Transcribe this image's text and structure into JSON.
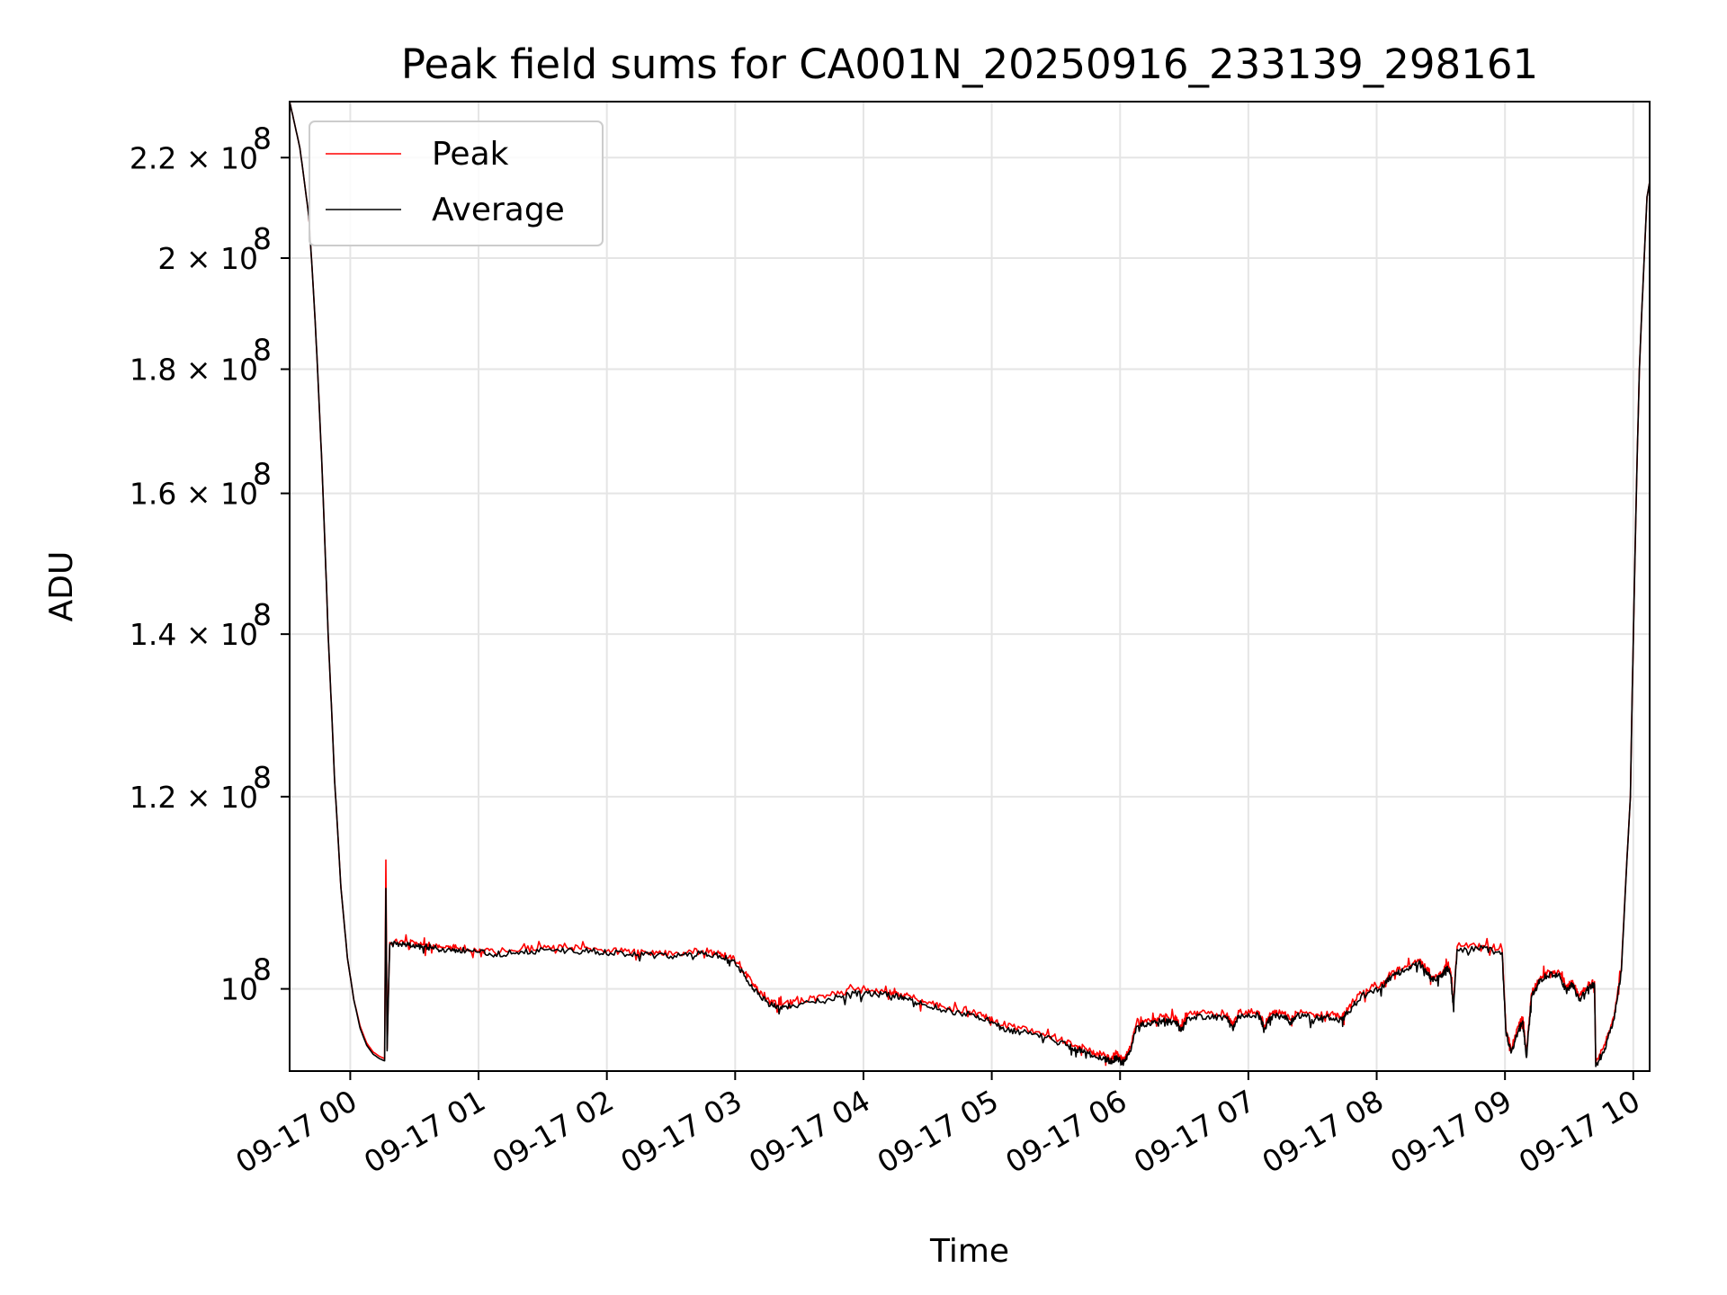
{
  "chart_data": {
    "type": "line",
    "title": "Peak field sums for CA001N_20250916_233139_298161",
    "xlabel": "Time",
    "ylabel": "ADU",
    "x_unit": "hours after 09-16 23:31:39",
    "xlim_hours": [
      0,
      10.6
    ],
    "ylim": [
      92500000,
      232000000
    ],
    "yscale": "log",
    "grid": true,
    "legend_position": "upper-left",
    "x_ticks": [
      {
        "label": "09-17 00",
        "hour": 0.4725
      },
      {
        "label": "09-17 01",
        "hour": 1.4725
      },
      {
        "label": "09-17 02",
        "hour": 2.4725
      },
      {
        "label": "09-17 03",
        "hour": 3.4725
      },
      {
        "label": "09-17 04",
        "hour": 4.4725
      },
      {
        "label": "09-17 05",
        "hour": 5.4725
      },
      {
        "label": "09-17 06",
        "hour": 6.4725
      },
      {
        "label": "09-17 07",
        "hour": 7.4725
      },
      {
        "label": "09-17 08",
        "hour": 8.4725
      },
      {
        "label": "09-17 09",
        "hour": 9.4725
      },
      {
        "label": "09-17 10",
        "hour": 10.4725
      }
    ],
    "y_ticks": [
      {
        "mantissa": "10",
        "exp": "8",
        "value": 100000000
      },
      {
        "mantissa": "1.2 × 10",
        "exp": "8",
        "value": 120000000
      },
      {
        "mantissa": "1.4 × 10",
        "exp": "8",
        "value": 140000000
      },
      {
        "mantissa": "1.6 × 10",
        "exp": "8",
        "value": 160000000
      },
      {
        "mantissa": "1.8 × 10",
        "exp": "8",
        "value": 180000000
      },
      {
        "mantissa": "2 × 10",
        "exp": "8",
        "value": 200000000
      },
      {
        "mantissa": "2.2 × 10",
        "exp": "8",
        "value": 220000000
      }
    ],
    "series": [
      {
        "name": "Peak",
        "color": "#ff0000",
        "points": [
          [
            0.0,
            232000000
          ],
          [
            0.08,
            222000000
          ],
          [
            0.15,
            208000000
          ],
          [
            0.2,
            188000000
          ],
          [
            0.25,
            165000000
          ],
          [
            0.3,
            140000000
          ],
          [
            0.35,
            122000000
          ],
          [
            0.4,
            110000000
          ],
          [
            0.45,
            103000000
          ],
          [
            0.5,
            99000000
          ],
          [
            0.55,
            96500000
          ],
          [
            0.6,
            95000000
          ],
          [
            0.65,
            94200000
          ],
          [
            0.7,
            93800000
          ],
          [
            0.74,
            93600000
          ],
          [
            0.75,
            113000000
          ],
          [
            0.76,
            94500000
          ],
          [
            0.78,
            104500000
          ],
          [
            0.9,
            104700000
          ],
          [
            1.0,
            104300000
          ],
          [
            1.1,
            104200000
          ],
          [
            1.2,
            104000000
          ],
          [
            1.3,
            104000000
          ],
          [
            1.45,
            103800000
          ],
          [
            1.6,
            103500000
          ],
          [
            1.8,
            103800000
          ],
          [
            2.0,
            104000000
          ],
          [
            2.2,
            104000000
          ],
          [
            2.4,
            103800000
          ],
          [
            2.6,
            103600000
          ],
          [
            2.8,
            103500000
          ],
          [
            3.0,
            103400000
          ],
          [
            3.2,
            103600000
          ],
          [
            3.35,
            103400000
          ],
          [
            3.45,
            103000000
          ],
          [
            3.55,
            101500000
          ],
          [
            3.65,
            99800000
          ],
          [
            3.75,
            98800000
          ],
          [
            3.85,
            98600000
          ],
          [
            4.0,
            98900000
          ],
          [
            4.2,
            99400000
          ],
          [
            4.4,
            99900000
          ],
          [
            4.55,
            99800000
          ],
          [
            4.7,
            99700000
          ],
          [
            4.8,
            99400000
          ],
          [
            4.95,
            98800000
          ],
          [
            5.1,
            98300000
          ],
          [
            5.3,
            97900000
          ],
          [
            5.45,
            97300000
          ],
          [
            5.55,
            96600000
          ],
          [
            5.7,
            96300000
          ],
          [
            5.9,
            95800000
          ],
          [
            6.05,
            95100000
          ],
          [
            6.15,
            94700000
          ],
          [
            6.25,
            94200000
          ],
          [
            6.35,
            93900000
          ],
          [
            6.4,
            93600000
          ],
          [
            6.45,
            94000000
          ],
          [
            6.5,
            93500000
          ],
          [
            6.55,
            94500000
          ],
          [
            6.6,
            96800000
          ],
          [
            6.7,
            97100000
          ],
          [
            6.8,
            97400000
          ],
          [
            6.9,
            97300000
          ],
          [
            6.95,
            96400000
          ],
          [
            7.0,
            97600000
          ],
          [
            7.15,
            97700000
          ],
          [
            7.3,
            97600000
          ],
          [
            7.35,
            96600000
          ],
          [
            7.4,
            97800000
          ],
          [
            7.55,
            97900000
          ],
          [
            7.6,
            96600000
          ],
          [
            7.65,
            97700000
          ],
          [
            7.75,
            97800000
          ],
          [
            7.8,
            97100000
          ],
          [
            7.85,
            97800000
          ],
          [
            8.0,
            97600000
          ],
          [
            8.1,
            97600000
          ],
          [
            8.2,
            97400000
          ],
          [
            8.25,
            98100000
          ],
          [
            8.35,
            99600000
          ],
          [
            8.5,
            100300000
          ],
          [
            8.6,
            101700000
          ],
          [
            8.7,
            102100000
          ],
          [
            8.8,
            102800000
          ],
          [
            8.85,
            102100000
          ],
          [
            8.9,
            101200000
          ],
          [
            8.98,
            101400000
          ],
          [
            9.02,
            102400000
          ],
          [
            9.05,
            101600000
          ],
          [
            9.07,
            98600000
          ],
          [
            9.1,
            104100000
          ],
          [
            9.3,
            104200000
          ],
          [
            9.45,
            103800000
          ],
          [
            9.48,
            96300000
          ],
          [
            9.52,
            94400000
          ],
          [
            9.58,
            96600000
          ],
          [
            9.61,
            97300000
          ],
          [
            9.64,
            94000000
          ],
          [
            9.68,
            99600000
          ],
          [
            9.75,
            101200000
          ],
          [
            9.82,
            101700000
          ],
          [
            9.9,
            101500000
          ],
          [
            9.95,
            100100000
          ],
          [
            10.0,
            100800000
          ],
          [
            10.05,
            99200000
          ],
          [
            10.12,
            100400000
          ],
          [
            10.17,
            100700000
          ],
          [
            10.18,
            93200000
          ],
          [
            10.25,
            94800000
          ],
          [
            10.32,
            97400000
          ],
          [
            10.38,
            102000000
          ],
          [
            10.45,
            120000000
          ],
          [
            10.52,
            180000000
          ],
          [
            10.58,
            212000000
          ],
          [
            10.6,
            215000000
          ]
        ]
      },
      {
        "name": "Average",
        "color": "#000000",
        "points": [
          [
            0.0,
            232000000
          ],
          [
            0.08,
            222000000
          ],
          [
            0.15,
            208000000
          ],
          [
            0.2,
            188000000
          ],
          [
            0.25,
            165000000
          ],
          [
            0.3,
            140000000
          ],
          [
            0.35,
            122000000
          ],
          [
            0.4,
            110000000
          ],
          [
            0.45,
            103000000
          ],
          [
            0.5,
            99000000
          ],
          [
            0.55,
            96300000
          ],
          [
            0.6,
            94800000
          ],
          [
            0.65,
            94000000
          ],
          [
            0.7,
            93600000
          ],
          [
            0.74,
            93400000
          ],
          [
            0.75,
            110000000
          ],
          [
            0.76,
            94300000
          ],
          [
            0.78,
            104300000
          ],
          [
            0.9,
            104400000
          ],
          [
            1.0,
            104100000
          ],
          [
            1.1,
            104000000
          ],
          [
            1.2,
            103800000
          ],
          [
            1.3,
            103800000
          ],
          [
            1.45,
            103600000
          ],
          [
            1.6,
            103300000
          ],
          [
            1.8,
            103600000
          ],
          [
            2.0,
            103800000
          ],
          [
            2.2,
            103800000
          ],
          [
            2.4,
            103600000
          ],
          [
            2.6,
            103400000
          ],
          [
            2.8,
            103300000
          ],
          [
            3.0,
            103200000
          ],
          [
            3.2,
            103400000
          ],
          [
            3.35,
            103200000
          ],
          [
            3.45,
            102800000
          ],
          [
            3.55,
            101200000
          ],
          [
            3.65,
            99500000
          ],
          [
            3.75,
            98500000
          ],
          [
            3.85,
            98300000
          ],
          [
            4.0,
            98600000
          ],
          [
            4.2,
            99100000
          ],
          [
            4.4,
            99600000
          ],
          [
            4.55,
            99500000
          ],
          [
            4.7,
            99400000
          ],
          [
            4.8,
            99100000
          ],
          [
            4.95,
            98500000
          ],
          [
            5.1,
            98000000
          ],
          [
            5.3,
            97600000
          ],
          [
            5.45,
            97000000
          ],
          [
            5.55,
            96300000
          ],
          [
            5.7,
            96000000
          ],
          [
            5.9,
            95500000
          ],
          [
            6.05,
            94800000
          ],
          [
            6.15,
            94400000
          ],
          [
            6.25,
            93900000
          ],
          [
            6.35,
            93600000
          ],
          [
            6.4,
            93300000
          ],
          [
            6.45,
            93700000
          ],
          [
            6.5,
            93200000
          ],
          [
            6.55,
            94200000
          ],
          [
            6.6,
            96500000
          ],
          [
            6.7,
            96800000
          ],
          [
            6.8,
            97100000
          ],
          [
            6.9,
            97000000
          ],
          [
            6.95,
            96100000
          ],
          [
            7.0,
            97300000
          ],
          [
            7.15,
            97400000
          ],
          [
            7.3,
            97300000
          ],
          [
            7.35,
            96300000
          ],
          [
            7.4,
            97500000
          ],
          [
            7.55,
            97600000
          ],
          [
            7.6,
            96300000
          ],
          [
            7.65,
            97400000
          ],
          [
            7.75,
            97500000
          ],
          [
            7.8,
            96800000
          ],
          [
            7.85,
            97500000
          ],
          [
            8.0,
            97300000
          ],
          [
            8.1,
            97300000
          ],
          [
            8.2,
            97100000
          ],
          [
            8.25,
            97800000
          ],
          [
            8.35,
            99300000
          ],
          [
            8.5,
            100000000
          ],
          [
            8.6,
            101400000
          ],
          [
            8.7,
            101800000
          ],
          [
            8.8,
            102500000
          ],
          [
            8.85,
            101800000
          ],
          [
            8.9,
            100900000
          ],
          [
            8.98,
            101100000
          ],
          [
            9.02,
            102100000
          ],
          [
            9.05,
            101300000
          ],
          [
            9.07,
            98300000
          ],
          [
            9.1,
            103800000
          ],
          [
            9.3,
            103900000
          ],
          [
            9.45,
            103500000
          ],
          [
            9.48,
            96000000
          ],
          [
            9.52,
            94100000
          ],
          [
            9.58,
            96300000
          ],
          [
            9.61,
            97000000
          ],
          [
            9.64,
            93700000
          ],
          [
            9.68,
            99300000
          ],
          [
            9.75,
            100900000
          ],
          [
            9.82,
            101400000
          ],
          [
            9.9,
            101200000
          ],
          [
            9.95,
            99800000
          ],
          [
            10.0,
            100500000
          ],
          [
            10.05,
            98900000
          ],
          [
            10.12,
            100100000
          ],
          [
            10.17,
            100400000
          ],
          [
            10.18,
            92900000
          ],
          [
            10.25,
            94500000
          ],
          [
            10.32,
            97100000
          ],
          [
            10.38,
            101700000
          ],
          [
            10.45,
            120000000
          ],
          [
            10.52,
            180000000
          ],
          [
            10.58,
            212000000
          ],
          [
            10.6,
            215000000
          ]
        ]
      }
    ]
  }
}
